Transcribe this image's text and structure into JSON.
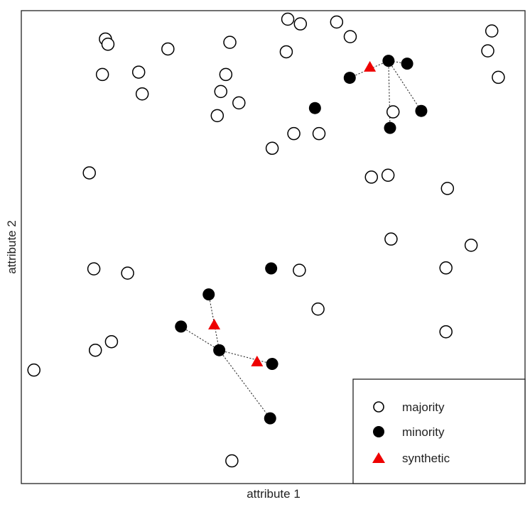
{
  "chart_data": {
    "type": "scatter",
    "xlabel": "attribute 1",
    "ylabel": "attribute 2",
    "xlim": [
      0,
      100
    ],
    "ylim": [
      0,
      100
    ],
    "ticks": false,
    "grid": false,
    "legend_position": "bottom-right",
    "series": [
      {
        "name": "majority",
        "marker": "open-circle",
        "color": "#000000",
        "points": [
          [
            2.5,
            24.0
          ],
          [
            16.7,
            94.0
          ],
          [
            17.2,
            92.9
          ],
          [
            16.1,
            86.5
          ],
          [
            23.3,
            87.0
          ],
          [
            24.0,
            82.4
          ],
          [
            29.1,
            91.9
          ],
          [
            13.5,
            65.7
          ],
          [
            14.4,
            45.4
          ],
          [
            21.1,
            44.5
          ],
          [
            14.7,
            28.2
          ],
          [
            17.9,
            30.0
          ],
          [
            40.6,
            86.5
          ],
          [
            41.4,
            93.3
          ],
          [
            39.6,
            82.9
          ],
          [
            38.9,
            77.8
          ],
          [
            43.2,
            80.5
          ],
          [
            49.8,
            70.9
          ],
          [
            52.9,
            98.2
          ],
          [
            55.4,
            97.2
          ],
          [
            54.1,
            74.0
          ],
          [
            59.1,
            74.0
          ],
          [
            52.6,
            91.3
          ],
          [
            62.6,
            97.6
          ],
          [
            65.3,
            94.5
          ],
          [
            69.5,
            64.8
          ],
          [
            72.8,
            65.2
          ],
          [
            73.8,
            78.6
          ],
          [
            55.2,
            45.1
          ],
          [
            58.9,
            36.9
          ],
          [
            73.4,
            51.7
          ],
          [
            84.6,
            62.4
          ],
          [
            89.3,
            50.4
          ],
          [
            84.3,
            45.6
          ],
          [
            84.3,
            32.1
          ],
          [
            93.4,
            95.7
          ],
          [
            92.6,
            91.5
          ],
          [
            94.7,
            85.9
          ],
          [
            41.8,
            4.8
          ]
        ]
      },
      {
        "name": "minority",
        "marker": "filled-circle",
        "color": "#000000",
        "points": [
          [
            58.3,
            79.4
          ],
          [
            65.2,
            85.8
          ],
          [
            72.9,
            89.4
          ],
          [
            76.6,
            88.8
          ],
          [
            79.4,
            78.8
          ],
          [
            73.2,
            75.2
          ],
          [
            49.6,
            45.5
          ],
          [
            37.2,
            40.0
          ],
          [
            31.7,
            33.2
          ],
          [
            39.3,
            28.2
          ],
          [
            49.8,
            25.3
          ],
          [
            49.4,
            13.8
          ]
        ]
      },
      {
        "name": "synthetic",
        "marker": "triangle",
        "color": "#ee0000",
        "points": [
          [
            69.2,
            88.0
          ],
          [
            38.3,
            33.5
          ],
          [
            46.8,
            25.7
          ]
        ]
      }
    ],
    "neighbor_links": [
      [
        [
          72.9,
          89.4
        ],
        [
          65.2,
          85.8
        ]
      ],
      [
        [
          72.9,
          89.4
        ],
        [
          79.4,
          78.8
        ]
      ],
      [
        [
          72.9,
          89.4
        ],
        [
          73.2,
          75.2
        ]
      ],
      [
        [
          76.6,
          88.8
        ],
        [
          72.9,
          89.4
        ]
      ],
      [
        [
          37.2,
          40.0
        ],
        [
          39.3,
          28.2
        ]
      ],
      [
        [
          31.7,
          33.2
        ],
        [
          39.3,
          28.2
        ]
      ],
      [
        [
          39.3,
          28.2
        ],
        [
          49.8,
          25.3
        ]
      ],
      [
        [
          39.3,
          28.2
        ],
        [
          49.4,
          13.8
        ]
      ]
    ]
  }
}
